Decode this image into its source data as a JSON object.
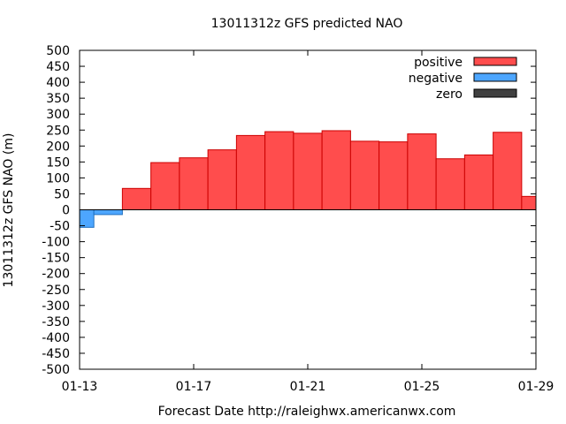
{
  "chart_data": {
    "type": "bar",
    "title": "13011312z GFS predicted NAO",
    "xlabel": "Forecast Date http://raleighwx.americanwx.com",
    "ylabel": "13011312z GFS NAO (m)",
    "ylim": [
      -500,
      500
    ],
    "yticks": [
      500,
      450,
      400,
      350,
      300,
      250,
      200,
      150,
      100,
      50,
      0,
      -50,
      -100,
      -150,
      -200,
      -250,
      -300,
      -350,
      -400,
      -450,
      -500
    ],
    "xlim": [
      "01-13",
      "01-29"
    ],
    "xticks": [
      "01-13",
      "01-17",
      "01-21",
      "01-25",
      "01-29"
    ],
    "legend_position": "top-right",
    "grid": false,
    "series": [
      {
        "name": "positive",
        "color": "#ff4d4d",
        "points": [
          {
            "start": "01-14.5",
            "end": "01-15.5",
            "value": 67
          },
          {
            "start": "01-15.5",
            "end": "01-16.5",
            "value": 148
          },
          {
            "start": "01-16.5",
            "end": "01-17.5",
            "value": 163
          },
          {
            "start": "01-17.5",
            "end": "01-18.5",
            "value": 188
          },
          {
            "start": "01-18.5",
            "end": "01-19.5",
            "value": 233
          },
          {
            "start": "01-19.5",
            "end": "01-20.5",
            "value": 245
          },
          {
            "start": "01-20.5",
            "end": "01-21.5",
            "value": 240
          },
          {
            "start": "01-21.5",
            "end": "01-22.5",
            "value": 248
          },
          {
            "start": "01-22.5",
            "end": "01-23.5",
            "value": 215
          },
          {
            "start": "01-23.5",
            "end": "01-24.5",
            "value": 213
          },
          {
            "start": "01-24.5",
            "end": "01-25.5",
            "value": 238
          },
          {
            "start": "01-25.5",
            "end": "01-26.5",
            "value": 160
          },
          {
            "start": "01-26.5",
            "end": "01-27.5",
            "value": 172
          },
          {
            "start": "01-27.5",
            "end": "01-28.5",
            "value": 243
          },
          {
            "start": "01-28.5",
            "end": "01-29",
            "value": 42
          }
        ]
      },
      {
        "name": "negative",
        "color": "#4da6ff",
        "points": [
          {
            "start": "01-13",
            "end": "01-13.5",
            "value": -55
          },
          {
            "start": "01-13.5",
            "end": "01-14.5",
            "value": -15
          }
        ]
      },
      {
        "name": "zero",
        "color": "#404040",
        "points": []
      }
    ]
  }
}
